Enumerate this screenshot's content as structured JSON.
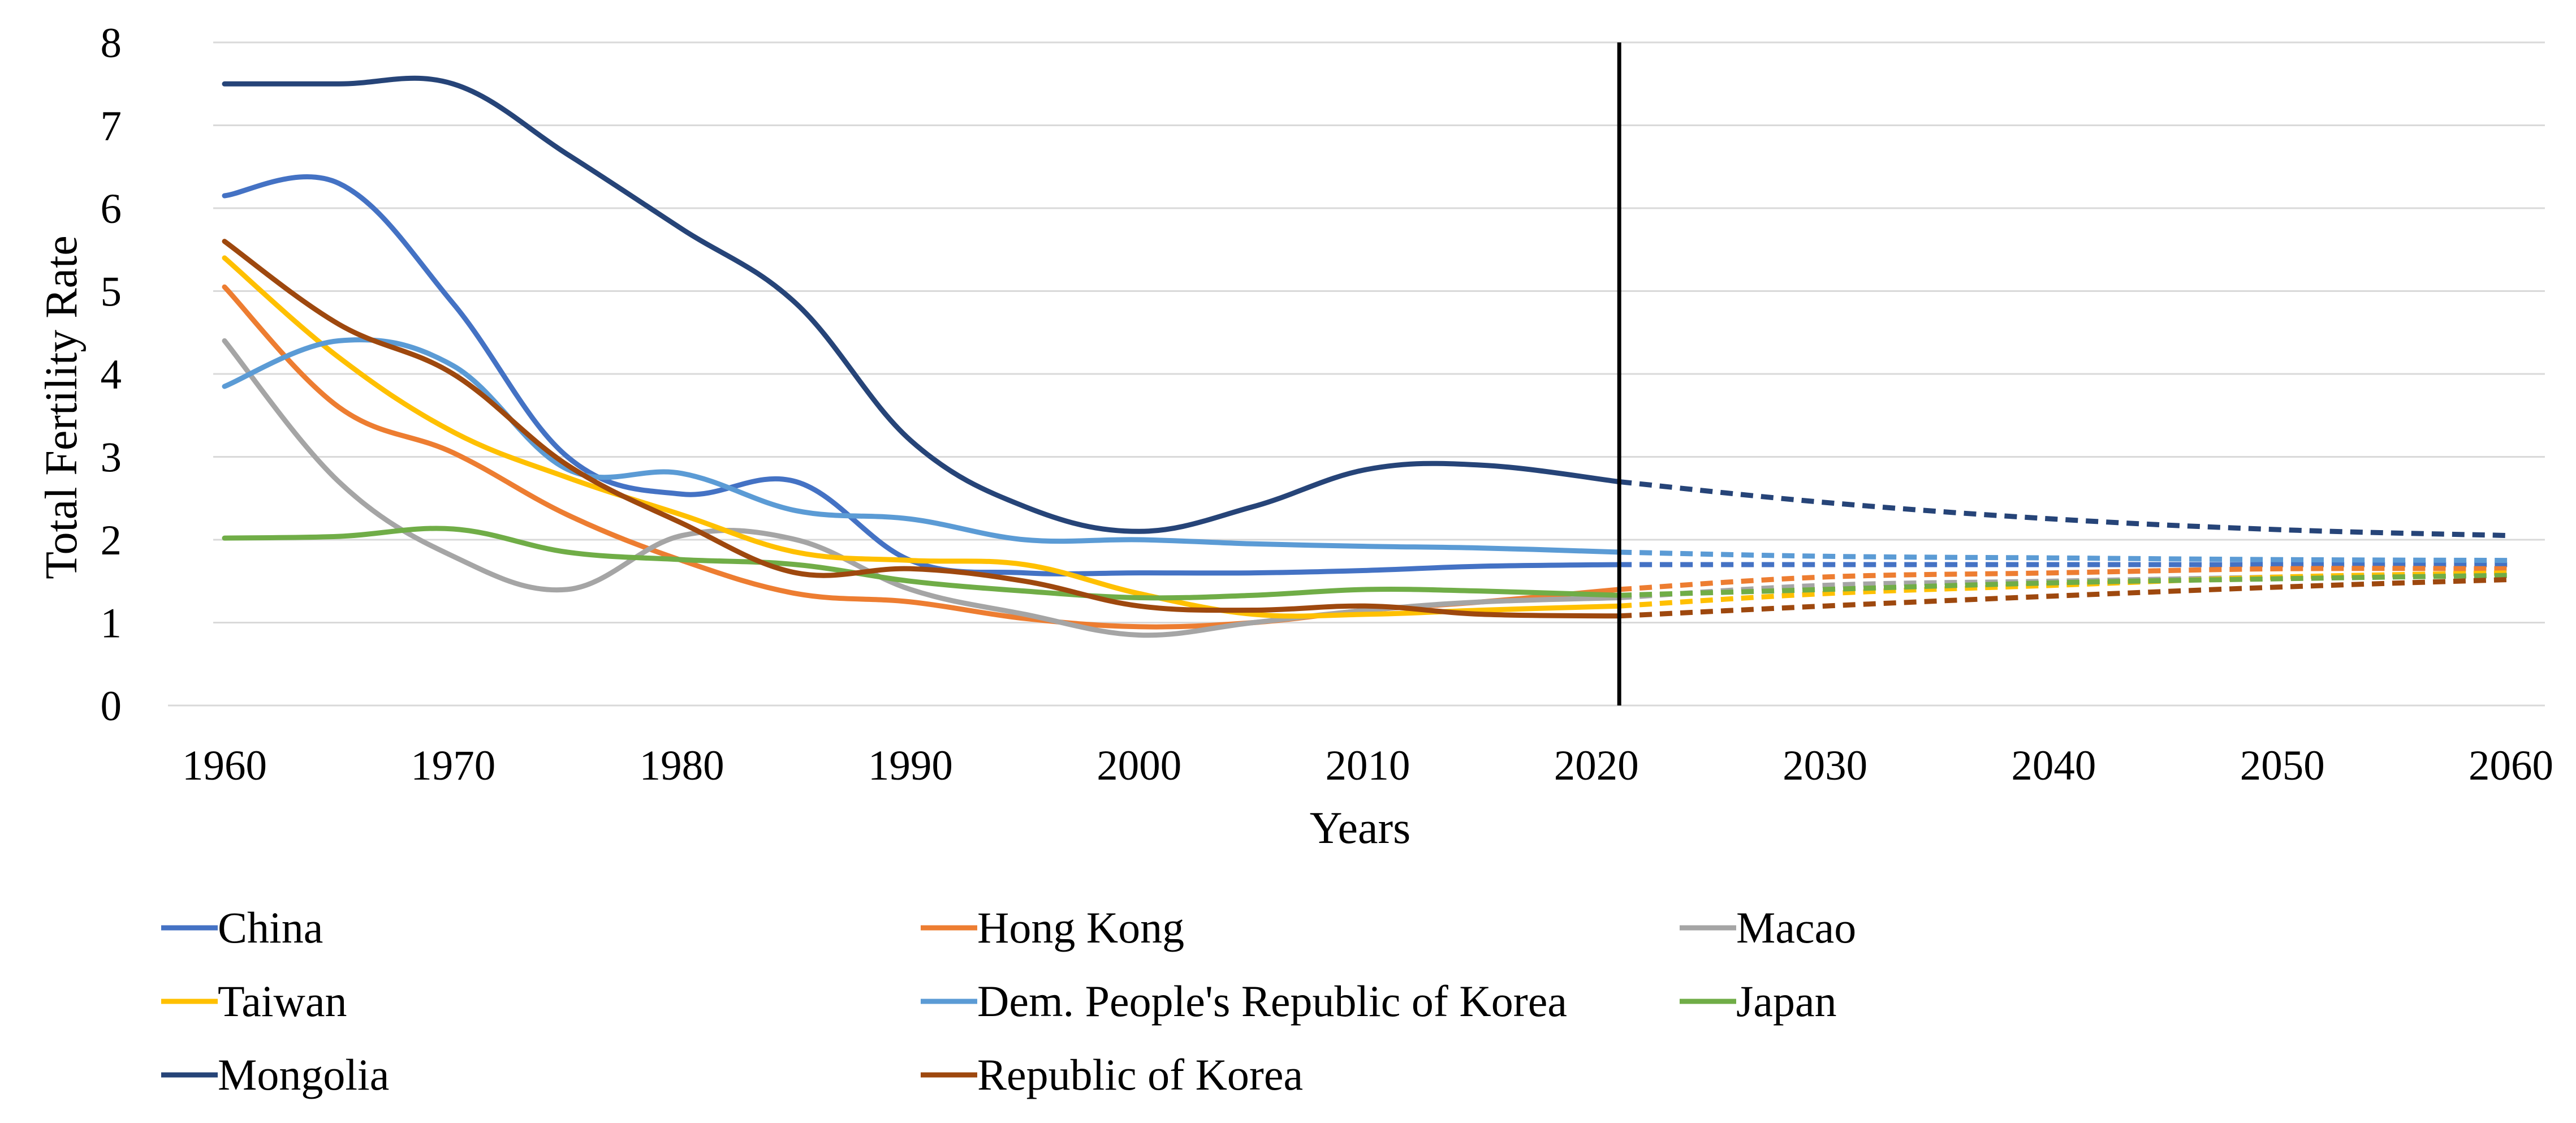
{
  "chart_data": {
    "type": "line",
    "title": "",
    "xlabel": "Years",
    "ylabel": "Total Fertility Rate",
    "xlim": [
      1960,
      2060
    ],
    "ylim": [
      0,
      8
    ],
    "x_ticks": [
      "1960",
      "1970",
      "1980",
      "1990",
      "2000",
      "2010",
      "2020",
      "2030",
      "2040",
      "2050",
      "2060"
    ],
    "y_ticks": [
      "0",
      "1",
      "2",
      "3",
      "4",
      "5",
      "6",
      "7",
      "8"
    ],
    "grid": "horizontal",
    "legend_position": "bottom",
    "projection_marker_year": 2021,
    "projection_style": "dashed after 2021",
    "series": [
      {
        "name": "China",
        "color": "#4472C4",
        "x": [
          1960,
          1965,
          1970,
          1975,
          1980,
          1985,
          1990,
          1995,
          2000,
          2005,
          2010,
          2015,
          2021
        ],
        "y": [
          6.15,
          6.3,
          4.85,
          3.0,
          2.55,
          2.7,
          1.75,
          1.6,
          1.6,
          1.6,
          1.63,
          1.68,
          1.7
        ],
        "proj_x": [
          2021,
          2030,
          2040,
          2050,
          2060
        ],
        "proj_y": [
          1.7,
          1.7,
          1.7,
          1.7,
          1.7
        ]
      },
      {
        "name": "Hong Kong",
        "color": "#ED7D31",
        "x": [
          1960,
          1965,
          1970,
          1975,
          1980,
          1985,
          1990,
          1995,
          2000,
          2005,
          2010,
          2015,
          2021
        ],
        "y": [
          5.05,
          3.6,
          3.05,
          2.3,
          1.75,
          1.35,
          1.25,
          1.05,
          0.95,
          1.0,
          1.15,
          1.25,
          1.4
        ],
        "proj_x": [
          2021,
          2030,
          2040,
          2050,
          2060
        ],
        "proj_y": [
          1.4,
          1.55,
          1.6,
          1.65,
          1.65
        ]
      },
      {
        "name": "Macao",
        "color": "#A5A5A5",
        "x": [
          1960,
          1965,
          1970,
          1975,
          1980,
          1985,
          1990,
          1995,
          2000,
          2005,
          2010,
          2015,
          2021
        ],
        "y": [
          4.4,
          2.7,
          1.8,
          1.4,
          2.05,
          2.0,
          1.4,
          1.1,
          0.85,
          1.0,
          1.15,
          1.25,
          1.3
        ],
        "proj_x": [
          2021,
          2030,
          2040,
          2050,
          2060
        ],
        "proj_y": [
          1.3,
          1.45,
          1.5,
          1.55,
          1.6
        ]
      },
      {
        "name": "Taiwan",
        "color": "#FFC000",
        "x": [
          1960,
          1965,
          1970,
          1975,
          1980,
          1985,
          1990,
          1995,
          2000,
          2005,
          2010,
          2015,
          2021
        ],
        "y": [
          5.4,
          4.2,
          3.3,
          2.75,
          2.3,
          1.85,
          1.75,
          1.7,
          1.35,
          1.1,
          1.1,
          1.15,
          1.2
        ],
        "proj_x": [
          2021,
          2030,
          2040,
          2050,
          2060
        ],
        "proj_y": [
          1.2,
          1.35,
          1.45,
          1.55,
          1.6
        ]
      },
      {
        "name": "Dem. People's Republic of Korea",
        "color": "#5B9BD5",
        "x": [
          1960,
          1965,
          1970,
          1975,
          1980,
          1985,
          1990,
          1995,
          2000,
          2005,
          2010,
          2015,
          2021
        ],
        "y": [
          3.85,
          4.4,
          4.1,
          2.85,
          2.8,
          2.35,
          2.25,
          2.0,
          2.0,
          1.95,
          1.92,
          1.9,
          1.85
        ],
        "proj_x": [
          2021,
          2030,
          2040,
          2050,
          2060
        ],
        "proj_y": [
          1.85,
          1.8,
          1.78,
          1.76,
          1.75
        ]
      },
      {
        "name": "Japan",
        "color": "#70AD47",
        "x": [
          1960,
          1965,
          1970,
          1975,
          1980,
          1985,
          1990,
          1995,
          2000,
          2005,
          2010,
          2015,
          2021
        ],
        "y": [
          2.02,
          2.04,
          2.13,
          1.85,
          1.76,
          1.7,
          1.5,
          1.38,
          1.3,
          1.33,
          1.4,
          1.38,
          1.33
        ],
        "proj_x": [
          2021,
          2030,
          2040,
          2050,
          2060
        ],
        "proj_y": [
          1.33,
          1.4,
          1.48,
          1.53,
          1.57
        ]
      },
      {
        "name": "Mongolia",
        "color": "#264478",
        "x": [
          1960,
          1965,
          1970,
          1975,
          1980,
          1985,
          1990,
          1995,
          2000,
          2005,
          2010,
          2015,
          2021
        ],
        "y": [
          7.5,
          7.5,
          7.5,
          6.65,
          5.75,
          4.85,
          3.2,
          2.4,
          2.1,
          2.4,
          2.85,
          2.9,
          2.7
        ],
        "proj_x": [
          2021,
          2030,
          2040,
          2050,
          2060
        ],
        "proj_y": [
          2.7,
          2.45,
          2.25,
          2.12,
          2.05
        ]
      },
      {
        "name": "Republic of Korea",
        "color": "#9E480E",
        "x": [
          1960,
          1965,
          1970,
          1975,
          1980,
          1985,
          1990,
          1995,
          2000,
          2005,
          2010,
          2015,
          2021
        ],
        "y": [
          5.6,
          4.6,
          4.0,
          2.9,
          2.2,
          1.6,
          1.65,
          1.5,
          1.2,
          1.15,
          1.2,
          1.1,
          1.08
        ],
        "proj_x": [
          2021,
          2030,
          2040,
          2050,
          2060
        ],
        "proj_y": [
          1.08,
          1.2,
          1.32,
          1.43,
          1.52
        ]
      }
    ]
  }
}
